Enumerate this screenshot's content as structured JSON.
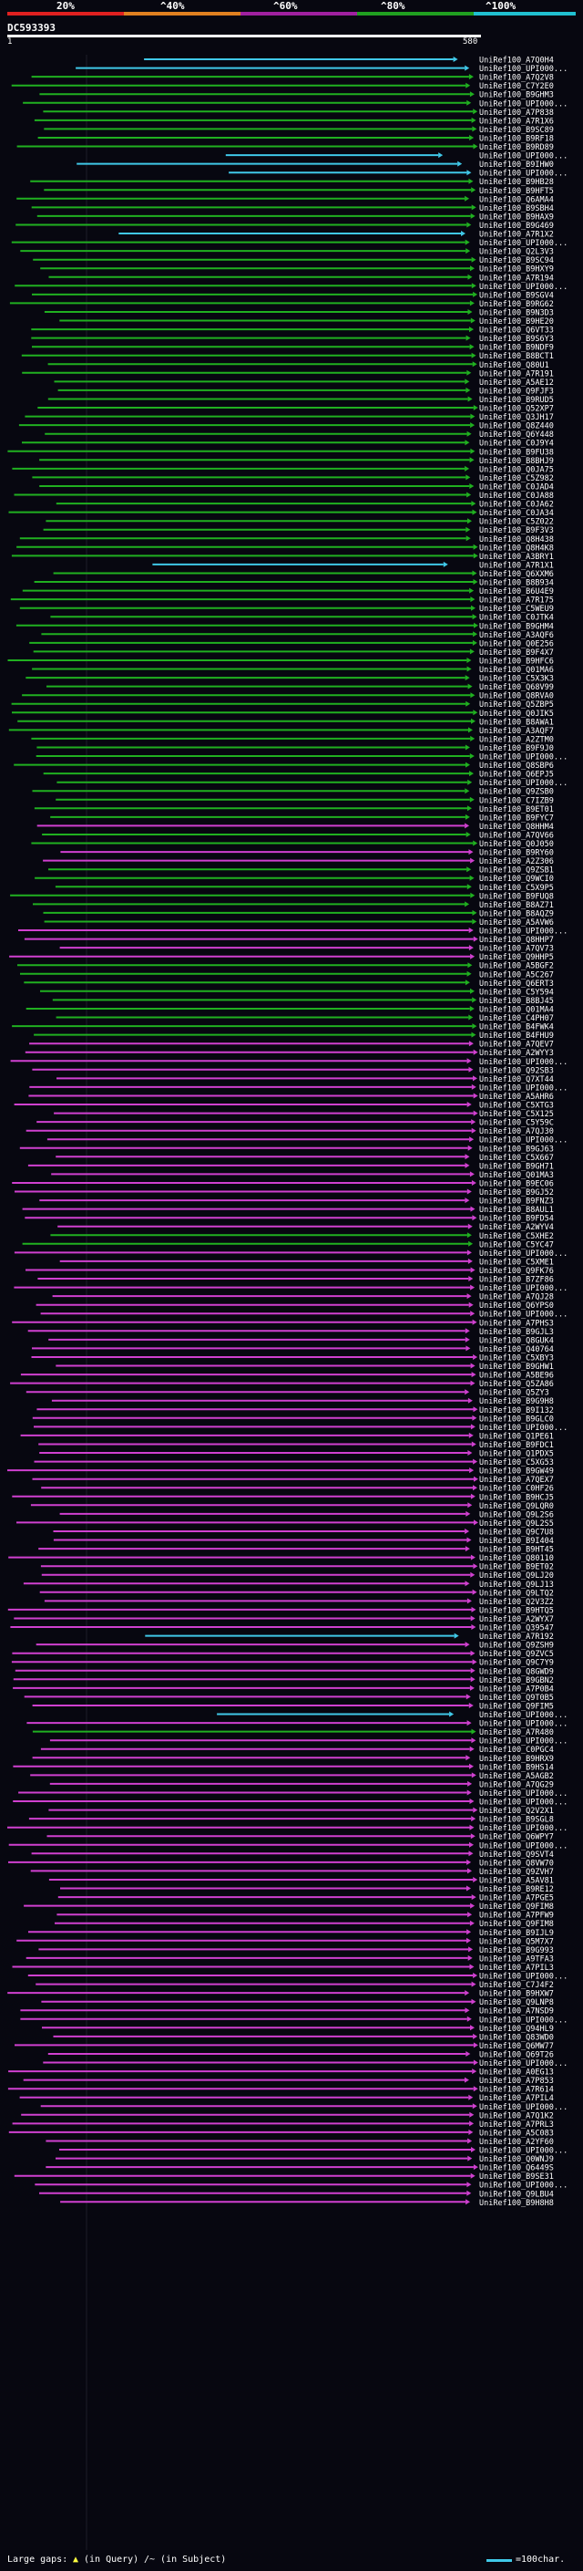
{
  "scale": {
    "labels": [
      "20%",
      "^40%",
      "^60%",
      "^80%",
      "^100%"
    ],
    "colors": [
      "#e02020",
      "#e08020",
      "#a020a0",
      "#20a020",
      "#20c0d0"
    ]
  },
  "query": {
    "id": "DC593393",
    "start": "1",
    "end": "580"
  },
  "hit_colors": {
    "cyan": "#40c8e8",
    "green": "#20b020",
    "magenta": "#d040d0"
  },
  "hits": [
    "UniRef100_A7Q0H4|cyan",
    "UniRef100_UPI000...|cyan",
    "UniRef100_A7Q2V8|green",
    "UniRef100_C7Y2E0|green",
    "UniRef100_B9GHM3|green",
    "UniRef100_UPI000...|green",
    "UniRef100_A7P838|green",
    "UniRef100_A7R1X6|green",
    "UniRef100_B9SC89|green",
    "UniRef100_B9RF18|green",
    "UniRef100_B9RD89|green",
    "UniRef100_UPI000...|cyan",
    "UniRef100_B9IHW0|cyan",
    "UniRef100_UPI000...|cyan",
    "UniRef100_B9HB28|green",
    "UniRef100_B9HFT5|green",
    "UniRef100_Q6AMA4|green",
    "UniRef100_B9SBH4|green",
    "UniRef100_B9HAX9|green",
    "UniRef100_B9G469|green",
    "UniRef100_A7R1X2|cyan",
    "UniRef100_UPI000...|green",
    "UniRef100_Q2L3V3|green",
    "UniRef100_B9SC94|green",
    "UniRef100_B9HXY9|green",
    "UniRef100_A7R194|green",
    "UniRef100_UPI000...|green",
    "UniRef100_B9SGV4|green",
    "UniRef100_B9RG62|green",
    "UniRef100_B9N3D3|green",
    "UniRef100_B9HE20|green",
    "UniRef100_Q6VT33|green",
    "UniRef100_B9S6Y3|green",
    "UniRef100_B9NDF9|green",
    "UniRef100_B8BCT1|green",
    "UniRef100_Q80U1|green",
    "UniRef100_A7R191|green",
    "UniRef100_A5AE12|green",
    "UniRef100_Q9FJF3|green",
    "UniRef100_B9RUD5|green",
    "UniRef100_Q52XP7|green",
    "UniRef100_Q3JH17|green",
    "UniRef100_Q8Z440|green",
    "UniRef100_Q6Y448|green",
    "UniRef100_C0J9Y4|green",
    "UniRef100_B9FU38|green",
    "UniRef100_B8BHJ9|green",
    "UniRef100_Q0JA75|green",
    "UniRef100_C5Z982|green",
    "UniRef100_C0JAD4|green",
    "UniRef100_C0JA88|green",
    "UniRef100_C0JA62|green",
    "UniRef100_C0JA34|green",
    "UniRef100_C5Z022|green",
    "UniRef100_B9F3V3|green",
    "UniRef100_Q8H438|green",
    "UniRef100_Q8H4K8|green",
    "UniRef100_A3BRY1|green",
    "UniRef100_A7R1X1|cyan",
    "UniRef100_Q6XXM6|green",
    "UniRef100_B8B934|green",
    "UniRef100_B6U4E9|green",
    "UniRef100_A7R175|green",
    "UniRef100_C5WEU9|green",
    "UniRef100_C0JTK4|green",
    "UniRef100_B9GHM4|green",
    "UniRef100_A3AQF6|green",
    "UniRef100_Q0E256|green",
    "UniRef100_B9F4X7|green",
    "UniRef100_B9HFC6|green",
    "UniRef100_Q01MA6|green",
    "UniRef100_C5X3K3|green",
    "UniRef100_Q68V99|green",
    "UniRef100_Q8RVA0|green",
    "UniRef100_Q5ZBP5|green",
    "UniRef100_Q0JIK5|green",
    "UniRef100_B8AWA1|green",
    "UniRef100_A3AQF7|green",
    "UniRef100_A2ZTM0|green",
    "UniRef100_B9F9J0|green",
    "UniRef100_UPI000...|green",
    "UniRef100_Q8SBP6|green",
    "UniRef100_Q6EPJ5|green",
    "UniRef100_UPI000...|green",
    "UniRef100_Q9ZSB0|green",
    "UniRef100_C7IZB9|green",
    "UniRef100_B9ET01|green",
    "UniRef100_B9FYC7|green",
    "UniRef100_Q8HHM4|magenta",
    "UniRef100_A7QV66|green",
    "UniRef100_Q0J050|green",
    "UniRef100_B9RY60|magenta",
    "UniRef100_A2Z306|magenta",
    "UniRef100_Q9ZSB1|green",
    "UniRef100_Q9WCI0|green",
    "UniRef100_C5X9P5|green",
    "UniRef100_B9FUQ8|green",
    "UniRef100_B8AZ71|green",
    "UniRef100_B8AQZ9|green",
    "UniRef100_A5AVW6|green",
    "UniRef100_UPI000...|magenta",
    "UniRef100_Q8HHP7|magenta",
    "UniRef100_A7QV73|magenta",
    "UniRef100_Q9HHP5|magenta",
    "UniRef100_A5BGF2|green",
    "UniRef100_A5C267|green",
    "UniRef100_Q6ERT3|green",
    "UniRef100_C5Y594|green",
    "UniRef100_B8BJ45|green",
    "UniRef100_Q01MA4|green",
    "UniRef100_C4PH07|green",
    "UniRef100_B4FWK4|green",
    "UniRef100_B4FHU9|green",
    "UniRef100_A7QEV7|magenta",
    "UniRef100_A2WYY3|magenta",
    "UniRef100_UPI000...|magenta",
    "UniRef100_Q92SB3|magenta",
    "UniRef100_Q7XT44|magenta",
    "UniRef100_UPI000...|magenta",
    "UniRef100_A5AHR6|magenta",
    "UniRef100_C5XTG3|magenta",
    "UniRef100_C5X125|magenta",
    "UniRef100_C5Y59C|magenta",
    "UniRef100_A7QJ30|magenta",
    "UniRef100_UPI000...|magenta",
    "UniRef100_B9GJ63|magenta",
    "UniRef100_C5X667|magenta",
    "UniRef100_B9GH71|magenta",
    "UniRef100_Q01MA3|magenta",
    "UniRef100_B9EC06|magenta",
    "UniRef100_B9GJ52|magenta",
    "UniRef100_B9FNZ3|magenta",
    "UniRef100_B8AUL1|magenta",
    "UniRef100_B9FD54|magenta",
    "UniRef100_A2WYV4|magenta",
    "UniRef100_C5XHE2|green",
    "UniRef100_C5YC47|green",
    "UniRef100_UPI000...|magenta",
    "UniRef100_C5XME1|magenta",
    "UniRef100_Q9FK76|magenta",
    "UniRef100_B7ZF86|magenta",
    "UniRef100_UPI000...|magenta",
    "UniRef100_A7QJ28|magenta",
    "UniRef100_Q6YPS0|magenta",
    "UniRef100_UPI000...|magenta",
    "UniRef100_A7PHS3|magenta",
    "UniRef100_B9GJL3|magenta",
    "UniRef100_Q8GUK4|magenta",
    "UniRef100_Q40764|magenta",
    "UniRef100_C5XBY3|magenta",
    "UniRef100_B9GHW1|magenta",
    "UniRef100_A5BE96|magenta",
    "UniRef100_Q5ZA86|magenta",
    "UniRef100_Q5ZY3|magenta",
    "UniRef100_B9G9H8|magenta",
    "UniRef100_B9I132|magenta",
    "UniRef100_B9GLC0|magenta",
    "UniRef100_UPI000...|magenta",
    "UniRef100_Q1PE61|magenta",
    "UniRef100_B9FDC1|magenta",
    "UniRef100_Q1PDX5|magenta",
    "UniRef100_C5XG53|magenta",
    "UniRef100_B9GW49|magenta",
    "UniRef100_A7QEX7|magenta",
    "UniRef100_C0HF26|magenta",
    "UniRef100_B9HCJ5|magenta",
    "UniRef100_Q9LQR0|magenta",
    "UniRef100_Q9L2S6|magenta",
    "UniRef100_Q9L2S5|magenta",
    "UniRef100_Q9C7U8|magenta",
    "UniRef100_B9I404|magenta",
    "UniRef100_B9HT45|magenta",
    "UniRef100_Q80110|magenta",
    "UniRef100_B9ET02|magenta",
    "UniRef100_Q9LJ20|magenta",
    "UniRef100_Q9LJ13|magenta",
    "UniRef100_Q9LTQ2|magenta",
    "UniRef100_Q2V3Z2|magenta",
    "UniRef100_B9HTQ5|magenta",
    "UniRef100_A2WYX7|magenta",
    "UniRef100_Q39547|magenta",
    "UniRef100_A7R192|cyan",
    "UniRef100_Q9ZSH9|magenta",
    "UniRef100_Q9ZVC5|magenta",
    "UniRef100_Q9C7Y9|magenta",
    "UniRef100_Q8GWD9|magenta",
    "UniRef100_B9GBN2|magenta",
    "UniRef100_A7P0B4|magenta",
    "UniRef100_Q9T0B5|magenta",
    "UniRef100_Q9FIM5|magenta",
    "UniRef100_UPI000...|cyan",
    "UniRef100_UPI000...|magenta",
    "UniRef100_A7R480|green",
    "UniRef100_UPI000...|magenta",
    "UniRef100_C0PGC4|magenta",
    "UniRef100_B9HRX9|magenta",
    "UniRef100_B9HS14|magenta",
    "UniRef100_A5AGB2|magenta",
    "UniRef100_A7QG29|magenta",
    "UniRef100_UPI000...|magenta",
    "UniRef100_UPI000...|magenta",
    "UniRef100_Q2V2X1|magenta",
    "UniRef100_B9SGL8|magenta",
    "UniRef100_UPI000...|magenta",
    "UniRef100_Q6WPY7|magenta",
    "UniRef100_UPI000...|magenta",
    "UniRef100_Q9SVT4|magenta",
    "UniRef100_Q8VW70|magenta",
    "UniRef100_Q9ZVH7|magenta",
    "UniRef100_A5AV81|magenta",
    "UniRef100_B9RE12|magenta",
    "UniRef100_A7PGE5|magenta",
    "UniRef100_Q9FIM8|magenta",
    "UniRef100_A7PFW9|magenta",
    "UniRef100_Q9FIM8|magenta",
    "UniRef100_B9IJL9|magenta",
    "UniRef100_Q5M7X7|magenta",
    "UniRef100_B9G993|magenta",
    "UniRef100_A9TFA3|magenta",
    "UniRef100_A7PIL3|magenta",
    "UniRef100_UPI000...|magenta",
    "UniRef100_C7J4F2|magenta",
    "UniRef100_B9HXW7|magenta",
    "UniRef100_Q9LNP8|magenta",
    "UniRef100_A7NSD9|magenta",
    "UniRef100_UPI000...|magenta",
    "UniRef100_Q94HL9|magenta",
    "UniRef100_Q83WD0|magenta",
    "UniRef100_Q6MW77|magenta",
    "UniRef100_Q69T26|magenta",
    "UniRef100_UPI000...|magenta",
    "UniRef100_A0EG13|magenta",
    "UniRef100_A7P853|magenta",
    "UniRef100_A7R614|magenta",
    "UniRef100_A7PIL4|magenta",
    "UniRef100_UPI000...|magenta",
    "UniRef100_A7Q1K2|magenta",
    "UniRef100_A7PRL3|magenta",
    "UniRef100_A5C083|magenta",
    "UniRef100_A2YF60|magenta",
    "UniRef100_UPI000...|magenta",
    "UniRef100_Q0WNJ9|magenta",
    "UniRef100_Q6449S|magenta",
    "UniRef100_B9SE31|magenta",
    "UniRef100_UPI000...|magenta",
    "UniRef100_Q9LBU4|magenta",
    "UniRef100_B9H8H8|magenta"
  ],
  "footer": {
    "large_gaps": "Large gaps: ",
    "in_query": "(in Query)",
    "in_subject": "/~ (in Subject)",
    "legend": "=100char."
  }
}
